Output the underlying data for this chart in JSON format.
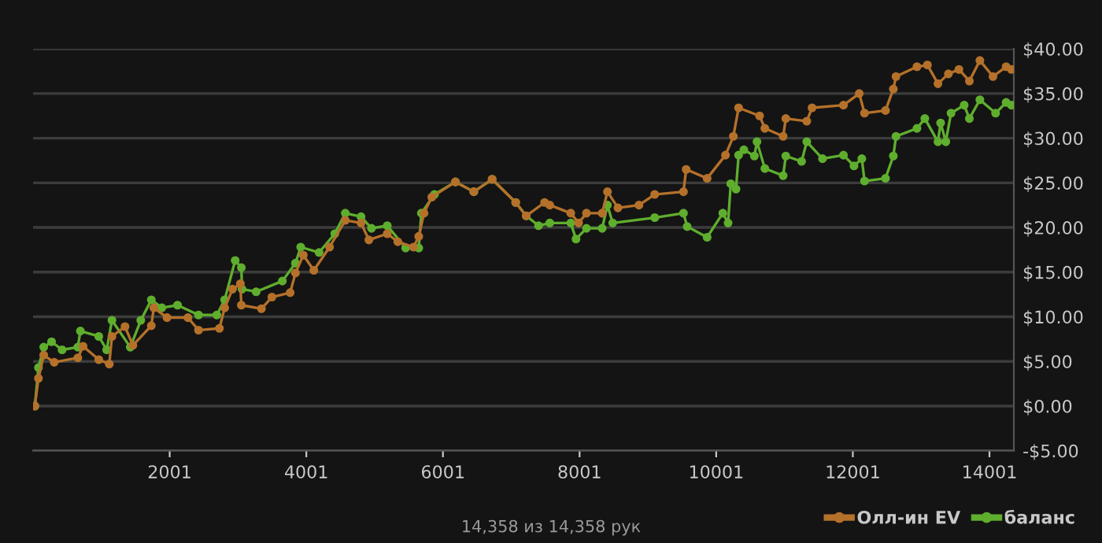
{
  "chart_data": {
    "type": "line",
    "marker": "circle",
    "line_style": "solid",
    "grid": "y",
    "legend": "bottom right",
    "annotations": [
      "14,358 из 14,358 рук"
    ],
    "xlim": [
      1,
      14358
    ],
    "xticks": [
      2001,
      4001,
      6001,
      8001,
      10001,
      12001,
      14001
    ],
    "ylim": [
      -5,
      40
    ],
    "yticks": [
      {
        "value": -5,
        "label": "-$5.00"
      },
      {
        "value": 0,
        "label": "$0.00"
      },
      {
        "value": 5,
        "label": "$5.00"
      },
      {
        "value": 10,
        "label": "$10.00"
      },
      {
        "value": 15,
        "label": "$15.00"
      },
      {
        "value": 20,
        "label": "$20.00"
      },
      {
        "value": 25,
        "label": "$25.00"
      },
      {
        "value": 30,
        "label": "$30.00"
      },
      {
        "value": 35,
        "label": "$35.00"
      },
      {
        "value": 40,
        "label": "$40.00"
      }
    ],
    "series": [
      {
        "name": "Олл-ин EV",
        "color": "#b5712a",
        "x": [
          27,
          80,
          157,
          311,
          656,
          733,
          963,
          1117,
          1156,
          1347,
          1462,
          1732,
          1769,
          1962,
          2268,
          2423,
          2729,
          2806,
          2921,
          3036,
          3050,
          3344,
          3497,
          3765,
          3842,
          3957,
          4111,
          4341,
          4572,
          4802,
          4917,
          5186,
          5340,
          5570,
          5647,
          5724,
          5838,
          6184,
          6453,
          6721,
          7066,
          7220,
          7489,
          7565,
          7872,
          7987,
          8102,
          8332,
          8409,
          8563,
          8870,
          9101,
          9522,
          9561,
          9868,
          10137,
          10252,
          10329,
          10636,
          10713,
          10981,
          11020,
          11327,
          11404,
          11864,
          12095,
          12172,
          12479,
          12594,
          12633,
          12940,
          13093,
          13247,
          13400,
          13554,
          13707,
          13861,
          14053,
          14245,
          14322
        ],
        "values": [
          0,
          3.1,
          5.7,
          4.9,
          5.4,
          6.7,
          5.2,
          4.7,
          7.8,
          8.9,
          6.8,
          9.0,
          11.0,
          9.9,
          9.9,
          8.5,
          8.7,
          11.0,
          13.1,
          13.7,
          11.3,
          10.9,
          12.2,
          12.7,
          14.9,
          16.9,
          15.2,
          17.8,
          20.8,
          20.5,
          18.6,
          19.3,
          18.4,
          17.8,
          19.0,
          21.6,
          23.4,
          25.1,
          24.0,
          25.4,
          22.8,
          21.3,
          22.8,
          22.5,
          21.6,
          20.5,
          21.6,
          21.6,
          24.0,
          22.2,
          22.5,
          23.7,
          24.0,
          26.5,
          25.5,
          28.1,
          30.2,
          33.4,
          32.5,
          31.1,
          30.2,
          32.2,
          31.9,
          33.4,
          33.7,
          35.0,
          32.8,
          33.1,
          35.5,
          36.9,
          38.0,
          38.2,
          36.1,
          37.2,
          37.7,
          36.4,
          38.7,
          36.9,
          38.0,
          37.7
        ]
      },
      {
        "name": "баланс",
        "color": "#5fae2e",
        "x": [
          27,
          80,
          157,
          272,
          426,
          656,
          694,
          963,
          1079,
          1156,
          1424,
          1578,
          1732,
          1886,
          2116,
          2423,
          2691,
          2806,
          2960,
          3050,
          3060,
          3267,
          3650,
          3842,
          3919,
          4188,
          4418,
          4572,
          4802,
          4955,
          5186,
          5455,
          5647,
          5685,
          5877,
          6184,
          6453,
          6721,
          7066,
          7220,
          7400,
          7565,
          7872,
          7949,
          8102,
          8332,
          8409,
          8486,
          9101,
          9522,
          9576,
          9868,
          10098,
          10175,
          10214,
          10291,
          10329,
          10406,
          10560,
          10598,
          10713,
          10981,
          11020,
          11251,
          11327,
          11557,
          11864,
          12018,
          12133,
          12172,
          12479,
          12594,
          12633,
          12940,
          13055,
          13247,
          13286,
          13362,
          13439,
          13631,
          13707,
          13861,
          14091,
          14245,
          14322
        ],
        "values": [
          0,
          4.3,
          6.6,
          7.2,
          6.3,
          6.6,
          8.4,
          7.8,
          6.3,
          9.6,
          6.6,
          9.6,
          11.9,
          11.0,
          11.3,
          10.2,
          10.2,
          11.9,
          16.3,
          15.5,
          13.1,
          12.8,
          14.0,
          16.0,
          17.8,
          17.2,
          19.3,
          21.6,
          21.2,
          19.9,
          20.2,
          17.7,
          17.7,
          21.6,
          23.7,
          25.1,
          24.0,
          25.4,
          22.8,
          21.3,
          20.2,
          20.5,
          20.5,
          18.7,
          19.9,
          19.9,
          22.5,
          20.5,
          21.1,
          21.6,
          20.1,
          18.9,
          21.6,
          20.5,
          24.9,
          24.3,
          28.1,
          28.7,
          28.0,
          29.6,
          26.6,
          25.8,
          28.0,
          27.4,
          29.6,
          27.7,
          28.1,
          26.9,
          27.7,
          25.2,
          25.5,
          28.0,
          30.2,
          31.1,
          32.2,
          29.6,
          31.7,
          29.6,
          32.8,
          33.7,
          32.2,
          34.3,
          32.8,
          34.0,
          33.7
        ]
      }
    ]
  }
}
